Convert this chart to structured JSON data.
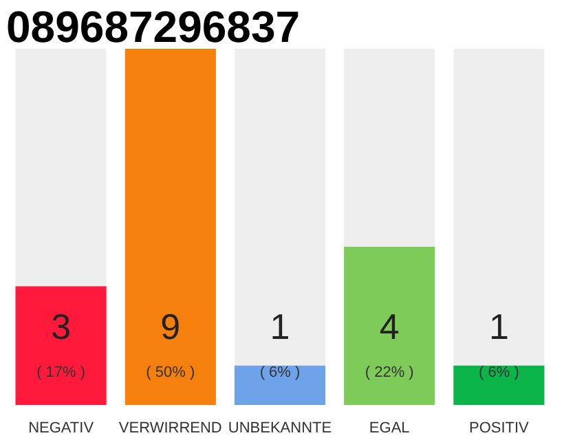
{
  "chart_data": {
    "type": "bar",
    "title": "089687296837",
    "categories": [
      "NEGATIV",
      "VERWIRREND",
      "UNBEKANNTE",
      "EGAL",
      "POSITIV"
    ],
    "stacked": true,
    "ylim": [
      0,
      9
    ],
    "tick_labels": "x",
    "grid": false,
    "series": [
      {
        "colors": [
          "#ff1a3c",
          "#f5800e",
          "#6ea3ea",
          "#7ecb5a",
          "#0bb54a"
        ],
        "values": [
          3,
          9,
          1,
          4,
          1
        ],
        "value_labels": [
          "3",
          "9",
          "1",
          "4",
          "1"
        ]
      },
      {
        "color": "#eeeeee",
        "values": [
          6,
          0,
          8,
          5,
          8
        ]
      }
    ],
    "annotations": [
      "( 17% )",
      "( 50% )",
      "( 6% )",
      "( 22% )",
      "( 6% )"
    ]
  }
}
